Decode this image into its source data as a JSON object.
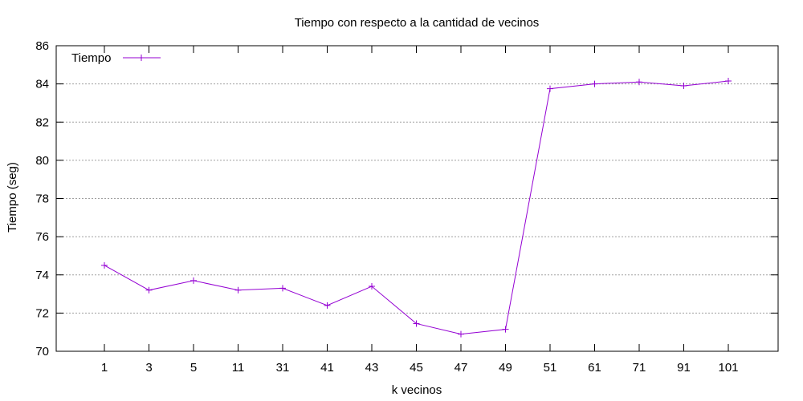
{
  "chart_data": {
    "type": "line",
    "title": "Tiempo con respecto a la cantidad de vecinos",
    "xlabel": "k vecinos",
    "ylabel": "Tiempo (seg)",
    "categories": [
      "1",
      "3",
      "5",
      "11",
      "31",
      "41",
      "43",
      "45",
      "47",
      "49",
      "51",
      "61",
      "71",
      "91",
      "101"
    ],
    "series": [
      {
        "name": "Tiempo",
        "values": [
          74.5,
          73.2,
          73.7,
          73.2,
          73.3,
          72.4,
          73.4,
          71.45,
          70.9,
          71.15,
          83.75,
          84.0,
          84.1,
          83.9,
          84.15
        ]
      }
    ],
    "ylim": [
      70,
      86
    ],
    "yticks": [
      70,
      72,
      74,
      76,
      78,
      80,
      82,
      84,
      86
    ],
    "grid": "horizontal",
    "legend_position": "top-left",
    "colors": {
      "series": "#9400d3",
      "grid": "#a0a0a0",
      "axes": "#000000"
    }
  }
}
